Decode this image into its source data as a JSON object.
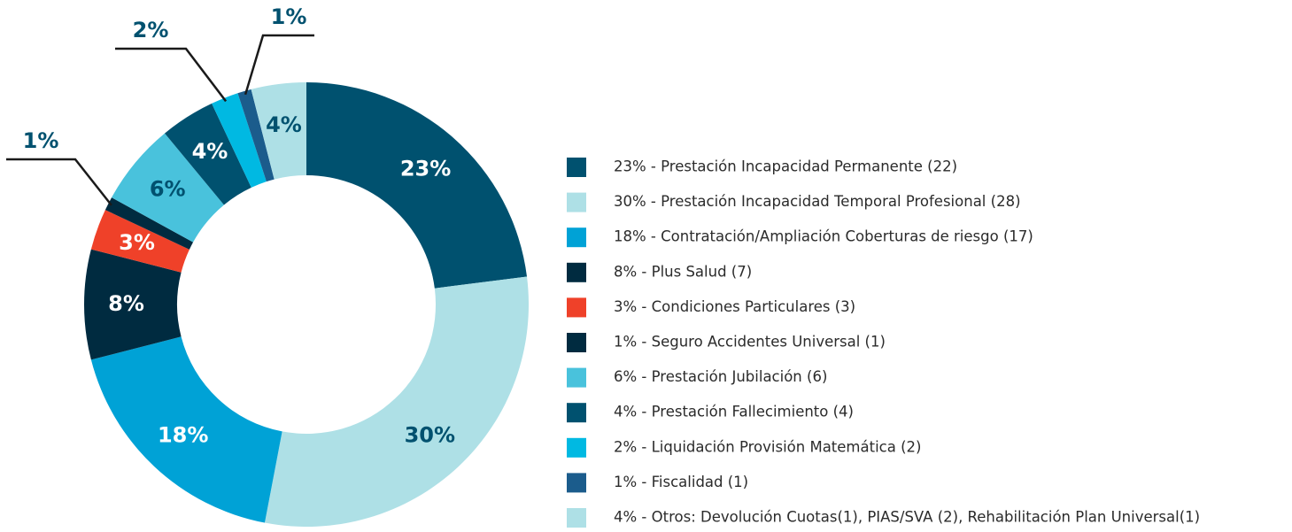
{
  "chart_data": {
    "type": "pie",
    "donut": true,
    "categories": [
      "23% - Prestación Incapacidad Permanente (22)",
      "30% - Prestación Incapacidad Temporal Profesional (28)",
      "18% - Contratación/Ampliación Coberturas de riesgo (17)",
      "8% - Plus Salud (7)",
      "3% - Condiciones Particulares (3)",
      "1% - Seguro Accidentes Universal (1)",
      "6% - Prestación Jubilación (6)",
      "4% - Prestación Fallecimiento (4)",
      "2% - Liquidación Provisión Matemática (2)",
      "1% - Fiscalidad (1)",
      "4% - Otros: Devolución Cuotas(1), PIAS/SVA (2), Rehabilitación Plan Universal(1)"
    ],
    "values": [
      23,
      30,
      18,
      8,
      3,
      1,
      6,
      4,
      2,
      1,
      4
    ],
    "value_labels": [
      "23%",
      "30%",
      "18%",
      "8%",
      "3%",
      "1%",
      "6%",
      "4%",
      "2%",
      "1%",
      "4%"
    ],
    "colors": [
      "#00516f",
      "#aee0e6",
      "#00a2d6",
      "#002b40",
      "#ef4129",
      "#002b40",
      "#49c2dc",
      "#00516f",
      "#00b9e2",
      "#1b5c8c",
      "#aee0e6"
    ],
    "legend": "right"
  }
}
